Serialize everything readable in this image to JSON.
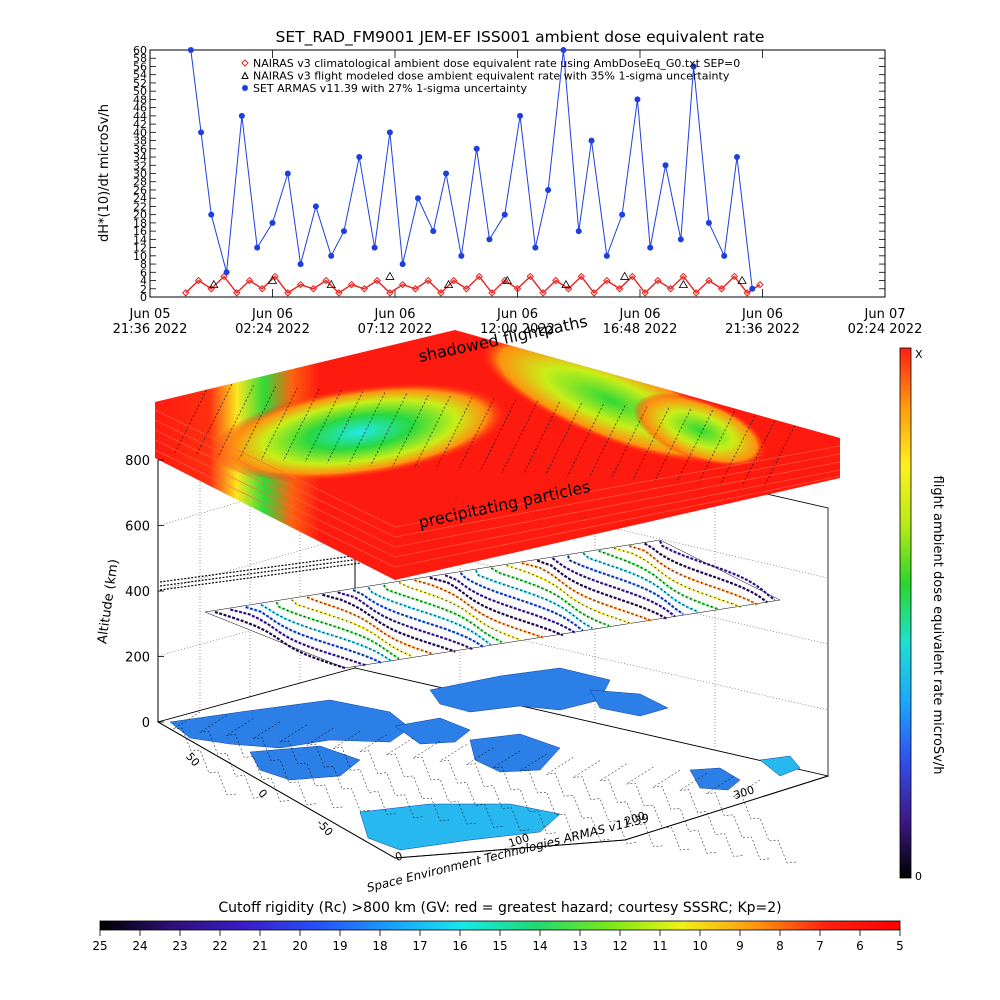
{
  "chart_data": [
    {
      "type": "line",
      "title": "SET_RAD_FM9001  JEM-EF ISS001 ambient dose equivalent rate",
      "ylabel": "dH*(10)/dt microSv/h",
      "ylim": [
        0,
        60
      ],
      "y_ticks": [
        0,
        2,
        4,
        6,
        8,
        10,
        12,
        14,
        16,
        18,
        20,
        22,
        24,
        26,
        28,
        30,
        32,
        34,
        36,
        38,
        40,
        42,
        44,
        46,
        48,
        50,
        52,
        54,
        56,
        58,
        60
      ],
      "x_ticks": [
        {
          "date": "Jun 05",
          "time": "21:36 2022"
        },
        {
          "date": "Jun 06",
          "time": "02:24 2022"
        },
        {
          "date": "Jun 06",
          "time": "07:12 2022"
        },
        {
          "date": "Jun 06",
          "time": "12:00 2022"
        },
        {
          "date": "Jun 06",
          "time": "16:48 2022"
        },
        {
          "date": "Jun 06",
          "time": "21:36 2022"
        },
        {
          "date": "Jun 07",
          "time": "02:24 2022"
        }
      ],
      "xlim_hours": [
        0,
        28.8
      ],
      "grid": false,
      "legend_position": "top-left",
      "series": [
        {
          "name": "NAIRAS v3 climatological ambient dose equivalent rate using AmbDoseEq_G0.txt SEP=0",
          "color": "#e8201c",
          "marker": "diamond",
          "x": [
            1.4,
            1.9,
            2.4,
            2.9,
            3.4,
            3.9,
            4.4,
            4.9,
            5.4,
            5.9,
            6.4,
            6.9,
            7.4,
            7.9,
            8.4,
            8.9,
            9.4,
            9.9,
            10.4,
            10.9,
            11.4,
            11.9,
            12.4,
            12.9,
            13.4,
            13.9,
            14.4,
            14.9,
            15.4,
            15.9,
            16.4,
            16.9,
            17.4,
            17.9,
            18.4,
            18.9,
            19.4,
            19.9,
            20.4,
            20.9,
            21.4,
            21.9,
            22.4,
            22.9,
            23.4,
            23.9
          ],
          "y": [
            1,
            4,
            2,
            5,
            1,
            4,
            2,
            5,
            1,
            3,
            2,
            4,
            1,
            3,
            2,
            4,
            1,
            3,
            2,
            4,
            1,
            4,
            2,
            5,
            1,
            4,
            2,
            5,
            1,
            4,
            2,
            5,
            1,
            4,
            2,
            5,
            1,
            4,
            2,
            5,
            1,
            4,
            2,
            5,
            1,
            3
          ]
        },
        {
          "name": "NAIRAS v3 flight modeled dose ambient equivalent rate with 35% 1-sigma uncertainty",
          "color": "#000000",
          "marker": "triangle",
          "x": [
            2.5,
            4.8,
            7.1,
            9.4,
            11.7,
            14.0,
            16.3,
            18.6,
            20.9,
            23.2
          ],
          "y": [
            3,
            4,
            3,
            5,
            3,
            4,
            3,
            5,
            3,
            4
          ]
        },
        {
          "name": "SET ARMAS v11.39 with 27% 1-sigma uncertainty",
          "color": "#1d3fe0",
          "marker": "dot",
          "x": [
            1.6,
            2.0,
            2.4,
            3.0,
            3.6,
            4.2,
            4.8,
            5.4,
            5.9,
            6.5,
            7.1,
            7.6,
            8.2,
            8.8,
            9.4,
            9.9,
            10.5,
            11.1,
            11.6,
            12.2,
            12.8,
            13.3,
            13.9,
            14.5,
            15.1,
            15.6,
            16.2,
            16.8,
            17.3,
            17.9,
            18.5,
            19.1,
            19.6,
            20.2,
            20.8,
            21.3,
            21.9,
            22.5,
            23.0,
            23.6
          ],
          "y": [
            60,
            40,
            20,
            6,
            44,
            12,
            18,
            30,
            8,
            22,
            10,
            16,
            34,
            12,
            40,
            8,
            24,
            16,
            30,
            10,
            36,
            14,
            20,
            44,
            12,
            26,
            60,
            16,
            38,
            10,
            20,
            48,
            12,
            32,
            14,
            56,
            18,
            10,
            34,
            2
          ]
        }
      ]
    },
    {
      "type": "heatmap",
      "zlabel": "Altitude (km)",
      "z_ticks": [
        0,
        200,
        400,
        600,
        800
      ],
      "x_ticks": [
        "0",
        "100",
        "200",
        "300"
      ],
      "y_ticks": [
        "50",
        "0",
        "-50"
      ],
      "annotations": [
        "shadowed flightpaths",
        "precipitating particles",
        "Space Environment Technologies ARMAS v11.39"
      ],
      "colorbar": {
        "label": "flight ambient dose equivalent rate microSv/h",
        "max_label": "X",
        "min_label": "0",
        "colors": [
          "#000000",
          "#3d1a8a",
          "#3050f0",
          "#1aa8ff",
          "#20e0d0",
          "#28d828",
          "#b8ea18",
          "#fff020",
          "#ff9a10",
          "#ff2010"
        ]
      }
    }
  ],
  "rigidity_bar": {
    "label": "Cutoff rigidity (Rc) >800 km (GV: red = greatest hazard; courtesy SSSRC; Kp=2)",
    "ticks": [
      "25",
      "24",
      "23",
      "22",
      "21",
      "20",
      "19",
      "18",
      "17",
      "16",
      "15",
      "14",
      "13",
      "12",
      "11",
      "10",
      "9",
      "8",
      "7",
      "6",
      "5"
    ],
    "colors": [
      "#000000",
      "#30107a",
      "#3a1ec8",
      "#2850f8",
      "#1aa0ff",
      "#18e8e8",
      "#20d870",
      "#78e818",
      "#f0f018",
      "#ff9810",
      "#ff2010",
      "#ff0000"
    ]
  }
}
